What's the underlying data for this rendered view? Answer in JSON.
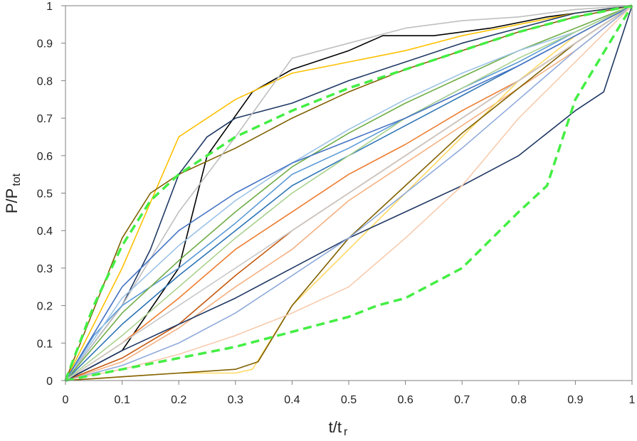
{
  "chart_data": {
    "type": "line",
    "title": "",
    "xlabel": "t/t",
    "xlabel_sub": "r",
    "ylabel": "P/P",
    "ylabel_sub": "tot",
    "xlim": [
      0,
      1
    ],
    "ylim": [
      0,
      1
    ],
    "grid": false,
    "legend": "none",
    "x_ticks": [
      "0",
      "0.1",
      "0.2",
      "0.3",
      "0.4",
      "0.5",
      "0.6",
      "0.7",
      "0.8",
      "0.9",
      "1"
    ],
    "y_ticks": [
      "0",
      "0.1",
      "0.2",
      "0.3",
      "0.4",
      "0.5",
      "0.6",
      "0.7",
      "0.8",
      "0.9",
      "1"
    ],
    "series": [
      {
        "color": "#000000",
        "style": "solid",
        "x": [
          0,
          0.1,
          0.2,
          0.25,
          0.33,
          0.4,
          0.5,
          0.56,
          0.65,
          0.75,
          0.85,
          1
        ],
        "y": [
          0,
          0.08,
          0.3,
          0.6,
          0.77,
          0.83,
          0.88,
          0.92,
          0.92,
          0.94,
          0.97,
          1
        ]
      },
      {
        "color": "#ffc000",
        "style": "solid",
        "x": [
          0,
          0.1,
          0.2,
          0.3,
          0.4,
          0.5,
          0.6,
          0.7,
          0.8,
          0.9,
          1
        ],
        "y": [
          0,
          0.3,
          0.65,
          0.75,
          0.82,
          0.85,
          0.88,
          0.92,
          0.95,
          0.98,
          1
        ]
      },
      {
        "color": "#7f6000",
        "style": "solid",
        "x": [
          0,
          0.1,
          0.15,
          0.2,
          0.3,
          0.4,
          0.5,
          0.6,
          0.7,
          0.8,
          0.9,
          1
        ],
        "y": [
          0,
          0.38,
          0.5,
          0.55,
          0.62,
          0.7,
          0.77,
          0.83,
          0.88,
          0.93,
          0.97,
          1
        ]
      },
      {
        "color": "#1f3864",
        "style": "solid",
        "x": [
          0,
          0.1,
          0.15,
          0.2,
          0.25,
          0.3,
          0.4,
          0.5,
          0.6,
          0.7,
          0.8,
          0.9,
          1
        ],
        "y": [
          0,
          0.2,
          0.35,
          0.55,
          0.65,
          0.7,
          0.74,
          0.8,
          0.85,
          0.9,
          0.94,
          0.98,
          1
        ]
      },
      {
        "color": "#bfbfbf",
        "style": "solid",
        "x": [
          0,
          0.1,
          0.2,
          0.3,
          0.4,
          0.5,
          0.6,
          0.7,
          0.8,
          0.9,
          1
        ],
        "y": [
          0,
          0.2,
          0.45,
          0.65,
          0.86,
          0.9,
          0.94,
          0.96,
          0.97,
          0.99,
          1
        ]
      },
      {
        "color": "#5b9bd5",
        "style": "solid",
        "x": [
          0,
          0.05,
          0.1,
          0.2,
          0.3,
          0.4,
          0.5,
          0.6,
          0.7,
          0.8,
          0.9,
          1
        ],
        "y": [
          0,
          0.12,
          0.2,
          0.3,
          0.42,
          0.55,
          0.62,
          0.7,
          0.78,
          0.85,
          0.93,
          1
        ]
      },
      {
        "color": "#ed7d31",
        "style": "solid",
        "x": [
          0,
          0.1,
          0.2,
          0.3,
          0.4,
          0.5,
          0.6,
          0.7,
          0.8,
          0.9,
          1
        ],
        "y": [
          0,
          0.1,
          0.22,
          0.35,
          0.45,
          0.55,
          0.63,
          0.72,
          0.8,
          0.9,
          1
        ]
      },
      {
        "color": "#f4b183",
        "style": "solid",
        "x": [
          0,
          0.1,
          0.2,
          0.3,
          0.4,
          0.5,
          0.6,
          0.7,
          0.8,
          0.9,
          1
        ],
        "y": [
          0,
          0.05,
          0.14,
          0.25,
          0.35,
          0.48,
          0.58,
          0.68,
          0.78,
          0.88,
          1
        ]
      },
      {
        "color": "#2e75b6",
        "style": "solid",
        "x": [
          0,
          0.1,
          0.2,
          0.3,
          0.4,
          0.5,
          0.6,
          0.7,
          0.8,
          0.9,
          1
        ],
        "y": [
          0,
          0.15,
          0.28,
          0.4,
          0.52,
          0.6,
          0.68,
          0.76,
          0.84,
          0.92,
          1
        ]
      },
      {
        "color": "#70ad47",
        "style": "solid",
        "x": [
          0,
          0.1,
          0.2,
          0.3,
          0.4,
          0.5,
          0.6,
          0.7,
          0.8,
          0.9,
          1
        ],
        "y": [
          0,
          0.18,
          0.32,
          0.45,
          0.57,
          0.66,
          0.74,
          0.81,
          0.88,
          0.94,
          1
        ]
      },
      {
        "color": "#c55a11",
        "style": "solid",
        "x": [
          0,
          0.1,
          0.2,
          0.3,
          0.4,
          0.5,
          0.6,
          0.7,
          0.8,
          0.9,
          1
        ],
        "y": [
          0,
          0.06,
          0.15,
          0.28,
          0.4,
          0.5,
          0.6,
          0.7,
          0.8,
          0.9,
          1
        ]
      },
      {
        "color": "#9dc3e6",
        "style": "solid",
        "x": [
          0,
          0.1,
          0.2,
          0.3,
          0.4,
          0.5,
          0.6,
          0.7,
          0.8,
          0.9,
          1
        ],
        "y": [
          0,
          0.22,
          0.36,
          0.48,
          0.58,
          0.67,
          0.75,
          0.82,
          0.88,
          0.93,
          1
        ]
      },
      {
        "color": "#a9d18e",
        "style": "solid",
        "x": [
          0,
          0.1,
          0.2,
          0.3,
          0.4,
          0.5,
          0.6,
          0.7,
          0.8,
          0.9,
          1
        ],
        "y": [
          0,
          0.12,
          0.25,
          0.38,
          0.5,
          0.6,
          0.7,
          0.78,
          0.86,
          0.93,
          1
        ]
      },
      {
        "color": "#ffd966",
        "style": "solid",
        "x": [
          0,
          0.1,
          0.2,
          0.3,
          0.33,
          0.4,
          0.5,
          0.6,
          0.7,
          0.8,
          0.9,
          1
        ],
        "y": [
          0,
          0.01,
          0.02,
          0.02,
          0.03,
          0.2,
          0.35,
          0.5,
          0.65,
          0.8,
          0.92,
          1
        ]
      },
      {
        "color": "#806000",
        "style": "solid",
        "x": [
          0,
          0.1,
          0.2,
          0.3,
          0.34,
          0.4,
          0.5,
          0.6,
          0.7,
          0.8,
          0.9,
          1
        ],
        "y": [
          0,
          0.01,
          0.02,
          0.03,
          0.05,
          0.2,
          0.38,
          0.52,
          0.66,
          0.78,
          0.9,
          1
        ]
      },
      {
        "color": "#203864",
        "style": "solid",
        "x": [
          0,
          0.1,
          0.2,
          0.3,
          0.4,
          0.5,
          0.6,
          0.7,
          0.8,
          0.9,
          0.95,
          1
        ],
        "y": [
          0,
          0.08,
          0.15,
          0.22,
          0.3,
          0.38,
          0.45,
          0.52,
          0.6,
          0.72,
          0.77,
          1
        ]
      },
      {
        "color": "#8faadc",
        "style": "solid",
        "x": [
          0,
          0.1,
          0.2,
          0.3,
          0.4,
          0.5,
          0.6,
          0.7,
          0.8,
          0.9,
          1
        ],
        "y": [
          0,
          0.04,
          0.1,
          0.18,
          0.28,
          0.38,
          0.5,
          0.62,
          0.75,
          0.88,
          1
        ]
      },
      {
        "color": "#f8cbad",
        "style": "solid",
        "x": [
          0,
          0.1,
          0.2,
          0.3,
          0.4,
          0.5,
          0.6,
          0.7,
          0.8,
          0.9,
          1
        ],
        "y": [
          0,
          0.03,
          0.07,
          0.12,
          0.18,
          0.25,
          0.38,
          0.52,
          0.7,
          0.85,
          1
        ]
      },
      {
        "color": "#4472c4",
        "style": "solid",
        "x": [
          0,
          0.1,
          0.2,
          0.3,
          0.4,
          0.5,
          0.6,
          0.7,
          0.8,
          0.9,
          1
        ],
        "y": [
          0,
          0.25,
          0.4,
          0.5,
          0.58,
          0.64,
          0.7,
          0.77,
          0.84,
          0.92,
          1
        ]
      },
      {
        "color": "#c9c9c9",
        "style": "solid",
        "x": [
          0,
          0.1,
          0.2,
          0.3,
          0.4,
          0.5,
          0.6,
          0.7,
          0.8,
          0.9,
          1
        ],
        "y": [
          0,
          0.1,
          0.2,
          0.3,
          0.4,
          0.5,
          0.6,
          0.7,
          0.8,
          0.9,
          1
        ]
      },
      {
        "color": "#44ee44",
        "style": "dashed",
        "x": [
          0,
          0.05,
          0.1,
          0.15,
          0.2,
          0.3,
          0.4,
          0.5,
          0.6,
          0.7,
          0.8,
          0.9,
          1
        ],
        "y": [
          0,
          0.2,
          0.36,
          0.48,
          0.55,
          0.65,
          0.72,
          0.78,
          0.83,
          0.88,
          0.93,
          0.97,
          1
        ]
      },
      {
        "color": "#44ee44",
        "style": "dashed",
        "x": [
          0,
          0.1,
          0.2,
          0.3,
          0.4,
          0.5,
          0.55,
          0.6,
          0.7,
          0.8,
          0.85,
          0.9,
          1
        ],
        "y": [
          0,
          0.03,
          0.06,
          0.09,
          0.13,
          0.17,
          0.2,
          0.22,
          0.3,
          0.45,
          0.52,
          0.75,
          1
        ]
      }
    ]
  }
}
